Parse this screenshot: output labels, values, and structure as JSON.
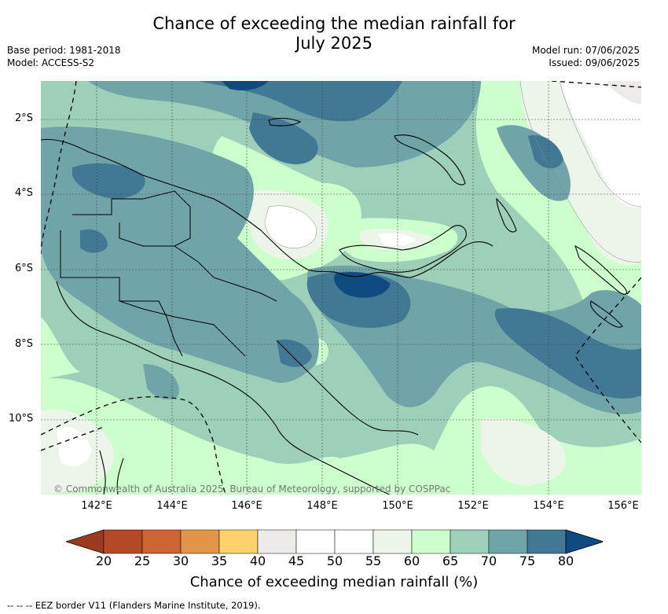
{
  "header": {
    "title_line1": "Chance of exceeding the median rainfall for",
    "title_line2": "July 2025",
    "base_period": "Base period: 1981-2018",
    "model": "Model: ACCESS-S2",
    "model_run": "Model run: 07/06/2025",
    "issued": "Issued: 09/06/2025"
  },
  "map": {
    "lat_labels": [
      "2°S",
      "4°S",
      "6°S",
      "8°S",
      "10°S"
    ],
    "lon_labels": [
      "142°E",
      "144°E",
      "146°E",
      "148°E",
      "150°E",
      "152°E",
      "154°E",
      "156°E"
    ],
    "copyright": "© Commonwealth of Australia 2025, Bureau of Meteorology, supported by COSPPac"
  },
  "colorbar": {
    "ticks": [
      "20",
      "25",
      "30",
      "35",
      "40",
      "45",
      "50",
      "55",
      "60",
      "65",
      "70",
      "75",
      "80"
    ],
    "colors": [
      "#b34a25",
      "#cc6533",
      "#e29448",
      "#fdd16b",
      "#ecebe8",
      "#ffffff",
      "#ffffff",
      "#edf5ea",
      "#ccffcc",
      "#9dcfb9",
      "#6fa4a8",
      "#417894"
    ],
    "low_extend_color": "#9c3a20",
    "high_extend_color": "#0f4b80",
    "title": "Chance of exceeding median rainfall (%)"
  },
  "footer": {
    "legend_text": "--  --  -- EEZ border V11 (Flanders Marine Institute, 2019)."
  }
}
